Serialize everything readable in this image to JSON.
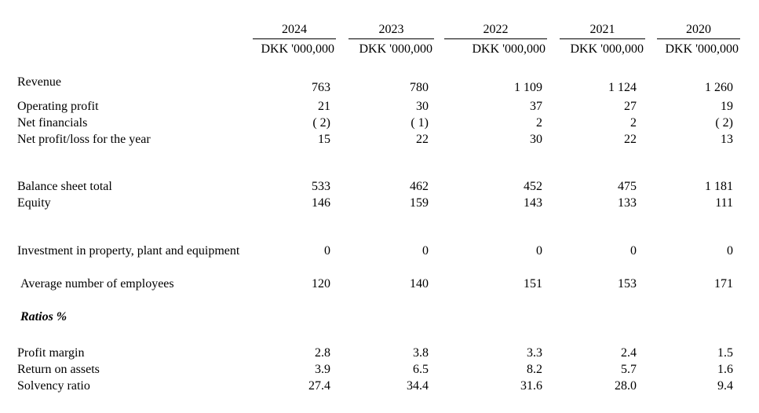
{
  "document": {
    "type": "financial-summary-table",
    "colors": {
      "text": "#000000",
      "background": "#ffffff",
      "rule": "#000000"
    },
    "table": {
      "columns": [
        {
          "year": "2024",
          "unit": "DKK '000,000"
        },
        {
          "year": "2023",
          "unit": "DKK '000,000"
        },
        {
          "year": "2022",
          "unit": "DKK '000,000"
        },
        {
          "year": "2021",
          "unit": "DKK '000,000"
        },
        {
          "year": "2020",
          "unit": "DKK '000,000"
        }
      ],
      "rows": [
        {
          "label": "Revenue",
          "values": [
            "763",
            "780",
            "1 109",
            "1 124",
            "1 260"
          ]
        },
        {
          "label": "Operating profit",
          "values": [
            "21",
            "30",
            "37",
            "27",
            "19"
          ]
        },
        {
          "label": "Net financials",
          "values": [
            "( 2)",
            "( 1)",
            "2",
            "2",
            "( 2)"
          ]
        },
        {
          "label": "Net profit/loss for the year",
          "values": [
            "15",
            "22",
            "30",
            "22",
            "13"
          ]
        },
        {
          "label": "Balance sheet total",
          "values": [
            "533",
            "462",
            "452",
            "475",
            "1 181"
          ]
        },
        {
          "label": "Equity",
          "values": [
            "146",
            "159",
            "143",
            "133",
            "111"
          ]
        },
        {
          "label": "Investment in property, plant and equipment",
          "values": [
            "0",
            "0",
            "0",
            "0",
            "0"
          ]
        },
        {
          "label": "Average number of employees",
          "values": [
            "120",
            "140",
            "151",
            "153",
            "171"
          ]
        },
        {
          "label": "Ratios %"
        },
        {
          "label": "Profit margin",
          "values": [
            "2.8",
            "3.8",
            "3.3",
            "2.4",
            "1.5"
          ]
        },
        {
          "label": "Return on assets",
          "values": [
            "3.9",
            "6.5",
            "8.2",
            "5.7",
            "1.6"
          ]
        },
        {
          "label": "Solvency ratio",
          "values": [
            "27.4",
            "34.4",
            "31.6",
            "28.0",
            "9.4"
          ]
        }
      ]
    }
  }
}
